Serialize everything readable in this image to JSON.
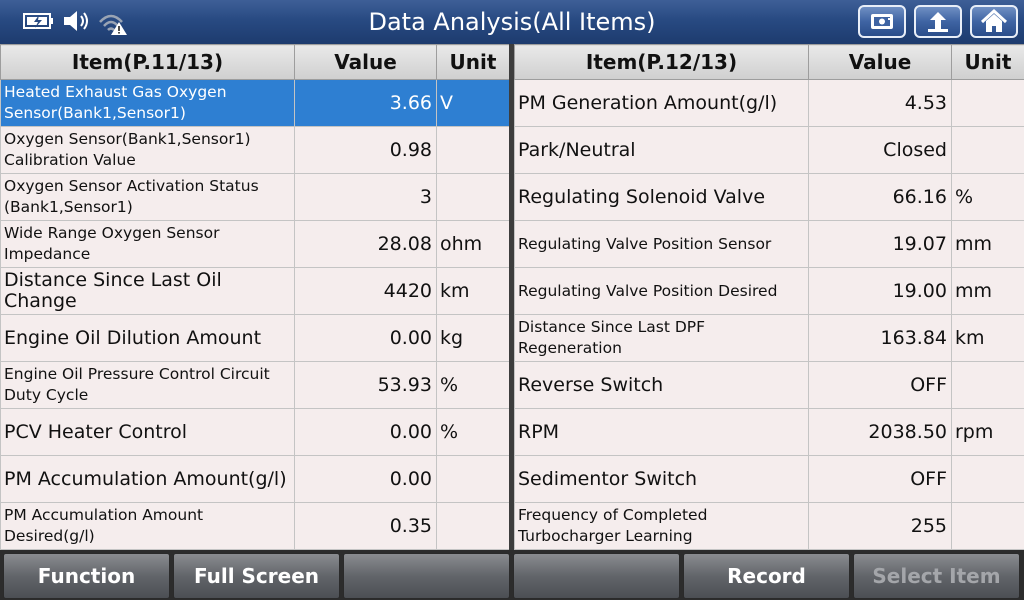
{
  "header": {
    "title": "Data Analysis(All Items)",
    "status_icons": [
      "battery-icon",
      "speaker-icon",
      "wifi-warning-icon"
    ],
    "buttons": [
      "screenshot-icon",
      "back-icon",
      "home-icon"
    ]
  },
  "left_table": {
    "col_item": "Item(P.11/13)",
    "col_value": "Value",
    "col_unit": "Unit",
    "rows": [
      {
        "name": "Heated Exhaust Gas Oxygen Sensor(Bank1,Sensor1)",
        "value": "3.66",
        "unit": "V"
      },
      {
        "name": "Oxygen Sensor(Bank1,Sensor1) Calibration Value",
        "value": "0.98",
        "unit": ""
      },
      {
        "name": "Oxygen Sensor Activation Status (Bank1,Sensor1)",
        "value": "3",
        "unit": ""
      },
      {
        "name": "Wide Range Oxygen Sensor Impedance",
        "value": "28.08",
        "unit": "ohm"
      },
      {
        "name": "Distance Since Last Oil Change",
        "value": "4420",
        "unit": "km"
      },
      {
        "name": "Engine Oil Dilution Amount",
        "value": "0.00",
        "unit": "kg"
      },
      {
        "name": "Engine Oil Pressure Control Circuit Duty Cycle",
        "value": "53.93",
        "unit": "%"
      },
      {
        "name": "PCV Heater Control",
        "value": "0.00",
        "unit": "%"
      },
      {
        "name": "PM Accumulation Amount(g/l)",
        "value": "0.00",
        "unit": ""
      },
      {
        "name": "PM Accumulation Amount Desired(g/l)",
        "value": "0.35",
        "unit": ""
      }
    ]
  },
  "right_table": {
    "col_item": "Item(P.12/13)",
    "col_value": "Value",
    "col_unit": "Unit",
    "rows": [
      {
        "name": "PM Generation Amount(g/l)",
        "value": "4.53",
        "unit": ""
      },
      {
        "name": "Park/Neutral",
        "value": "Closed",
        "unit": ""
      },
      {
        "name": "Regulating Solenoid Valve",
        "value": "66.16",
        "unit": "%"
      },
      {
        "name": "Regulating Valve Position Sensor",
        "value": "19.07",
        "unit": "mm"
      },
      {
        "name": "Regulating Valve Position Desired",
        "value": "19.00",
        "unit": "mm"
      },
      {
        "name": "Distance Since Last DPF Regeneration",
        "value": "163.84",
        "unit": "km"
      },
      {
        "name": "Reverse Switch",
        "value": "OFF",
        "unit": ""
      },
      {
        "name": "RPM",
        "value": "2038.50",
        "unit": "rpm"
      },
      {
        "name": "Sedimentor Switch",
        "value": "OFF",
        "unit": ""
      },
      {
        "name": "Frequency of Completed Turbocharger Learning",
        "value": "255",
        "unit": ""
      }
    ]
  },
  "footer": {
    "function": "Function",
    "full_screen": "Full Screen",
    "empty1": "",
    "empty2": "",
    "record": "Record",
    "select_item": "Select Item"
  }
}
